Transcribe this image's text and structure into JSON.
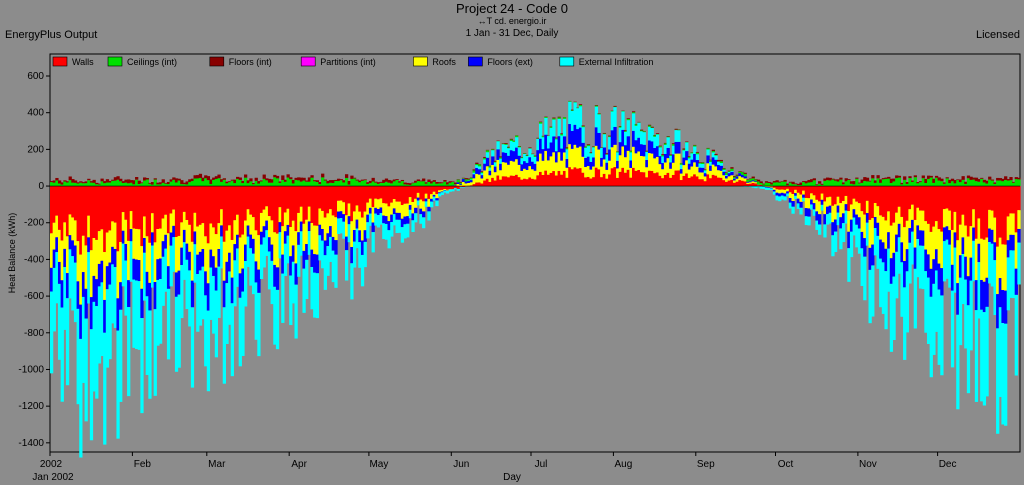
{
  "header": {
    "title": "Project 24 - Code 0",
    "subtitle": "↔T cd. energio.ir",
    "period": "1 Jan - 31 Dec, Daily",
    "left_label": "EnergyPlus Output",
    "right_label": "Licensed"
  },
  "chart_data": {
    "type": "bar",
    "stacked": true,
    "ylabel": "Heat Balance (kWh)",
    "xlabel": "Day",
    "ylim": [
      -1450,
      720
    ],
    "yticks": [
      600,
      400,
      200,
      0,
      -200,
      -400,
      -600,
      -800,
      -1000,
      -1200,
      -1400
    ],
    "xlim": [
      0,
      365
    ],
    "xticks": [
      {
        "day": 0,
        "label": "2002"
      },
      {
        "day": 31,
        "label": "Feb"
      },
      {
        "day": 59,
        "label": "Mar"
      },
      {
        "day": 90,
        "label": "Apr"
      },
      {
        "day": 120,
        "label": "May"
      },
      {
        "day": 151,
        "label": "Jun"
      },
      {
        "day": 181,
        "label": "Jul"
      },
      {
        "day": 212,
        "label": "Aug"
      },
      {
        "day": 243,
        "label": "Sep"
      },
      {
        "day": 273,
        "label": "Oct"
      },
      {
        "day": 304,
        "label": "Nov"
      },
      {
        "day": 334,
        "label": "Dec"
      }
    ],
    "x_start_label": "Jan 2002",
    "legend_position": "top-left",
    "series": [
      {
        "name": "Walls",
        "color": "#ff0000"
      },
      {
        "name": "Ceilings (int)",
        "color": "#00e000"
      },
      {
        "name": "Floors (int)",
        "color": "#880000"
      },
      {
        "name": "Partitions (int)",
        "color": "#ff00ff"
      },
      {
        "name": "Roofs",
        "color": "#ffff00"
      },
      {
        "name": "Floors (ext)",
        "color": "#0000ff"
      },
      {
        "name": "External Infiltration",
        "color": "#00ffff"
      }
    ],
    "monthly_envelope": {
      "months": [
        "Jan",
        "Feb",
        "Mar",
        "Apr",
        "May",
        "Jun",
        "Jul",
        "Aug",
        "Sep",
        "Oct",
        "Nov",
        "Dec"
      ],
      "walls": [
        -260,
        -230,
        -200,
        -150,
        -70,
        40,
        75,
        70,
        30,
        -60,
        -170,
        -230
      ],
      "roofs": [
        -190,
        -160,
        -140,
        -110,
        -50,
        60,
        90,
        80,
        20,
        -50,
        -140,
        -180
      ],
      "floors_ext": [
        -130,
        -110,
        -95,
        -70,
        -30,
        40,
        80,
        55,
        15,
        -40,
        -110,
        -130
      ],
      "external_infiltration": [
        -450,
        -340,
        -260,
        -160,
        -50,
        30,
        90,
        60,
        0,
        -40,
        -300,
        -400
      ],
      "ceilings_int": [
        20,
        25,
        30,
        28,
        20,
        5,
        5,
        5,
        8,
        20,
        30,
        25
      ],
      "floors_int": [
        12,
        14,
        16,
        14,
        10,
        3,
        3,
        3,
        5,
        10,
        15,
        12
      ]
    }
  }
}
